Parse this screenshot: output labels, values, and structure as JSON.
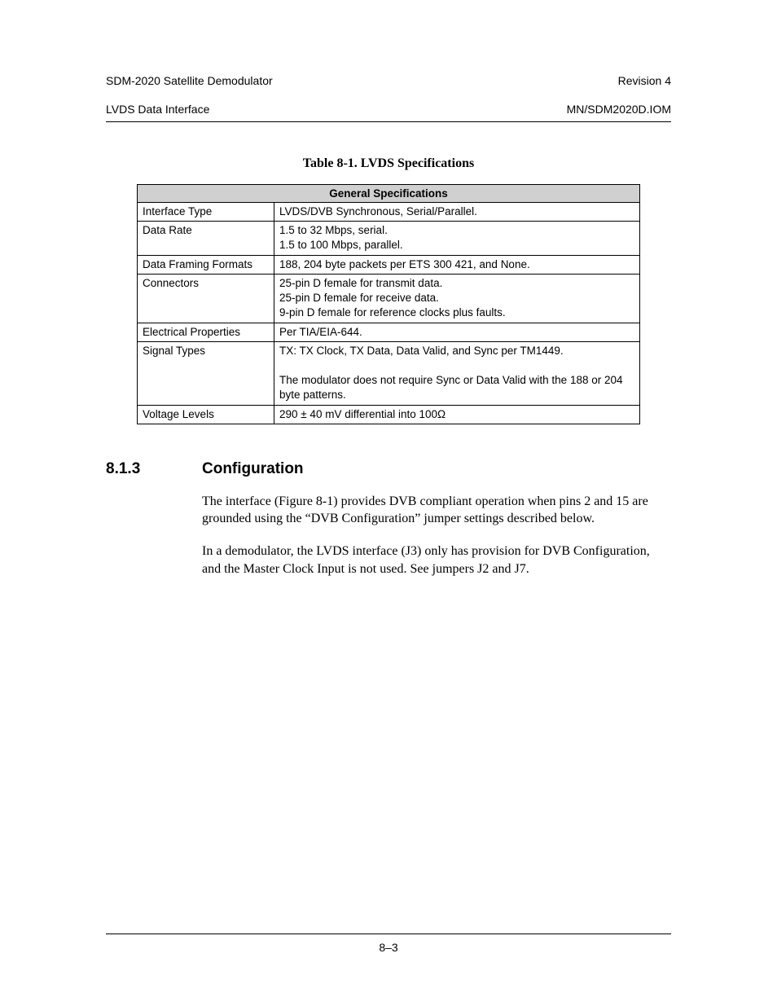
{
  "header": {
    "left_line1": "SDM-2020 Satellite Demodulator",
    "left_line2": "LVDS Data Interface",
    "right_line1": "Revision 4",
    "right_line2": "MN/SDM2020D.IOM"
  },
  "table": {
    "title": "Table 8-1.  LVDS Specifications",
    "header": "General Specifications",
    "rows": [
      {
        "label": "Interface Type",
        "value": "LVDS/DVB Synchronous, Serial/Parallel."
      },
      {
        "label": "Data Rate",
        "value": "1.5 to 32 Mbps, serial.\n1.5 to 100 Mbps, parallel."
      },
      {
        "label": "Data Framing Formats",
        "value": "188, 204 byte packets per ETS 300 421, and None."
      },
      {
        "label": "Connectors",
        "value": "25-pin D female for transmit data.\n25-pin D female for receive data.\n9-pin D female for reference clocks plus faults."
      },
      {
        "label": "Electrical Properties",
        "value": "Per TIA/EIA-644."
      },
      {
        "label": "Signal Types",
        "value": "TX: TX Clock, TX Data, Data Valid, and Sync per TM1449.\n\nThe modulator does not require Sync or Data Valid with the 188 or 204 byte patterns."
      },
      {
        "label": "Voltage Levels",
        "value": "290 ± 40 mV differential into 100Ω"
      }
    ]
  },
  "section": {
    "number": "8.1.3",
    "title": "Configuration",
    "paragraphs": [
      "The interface (Figure 8-1) provides DVB compliant operation when pins 2 and 15 are grounded using the “DVB Configuration” jumper settings described below.",
      "In a demodulator, the LVDS interface (J3) only has provision for DVB Configuration, and the Master Clock Input is not used. See jumpers J2 and J7."
    ]
  },
  "footer": {
    "page": "8–3"
  }
}
